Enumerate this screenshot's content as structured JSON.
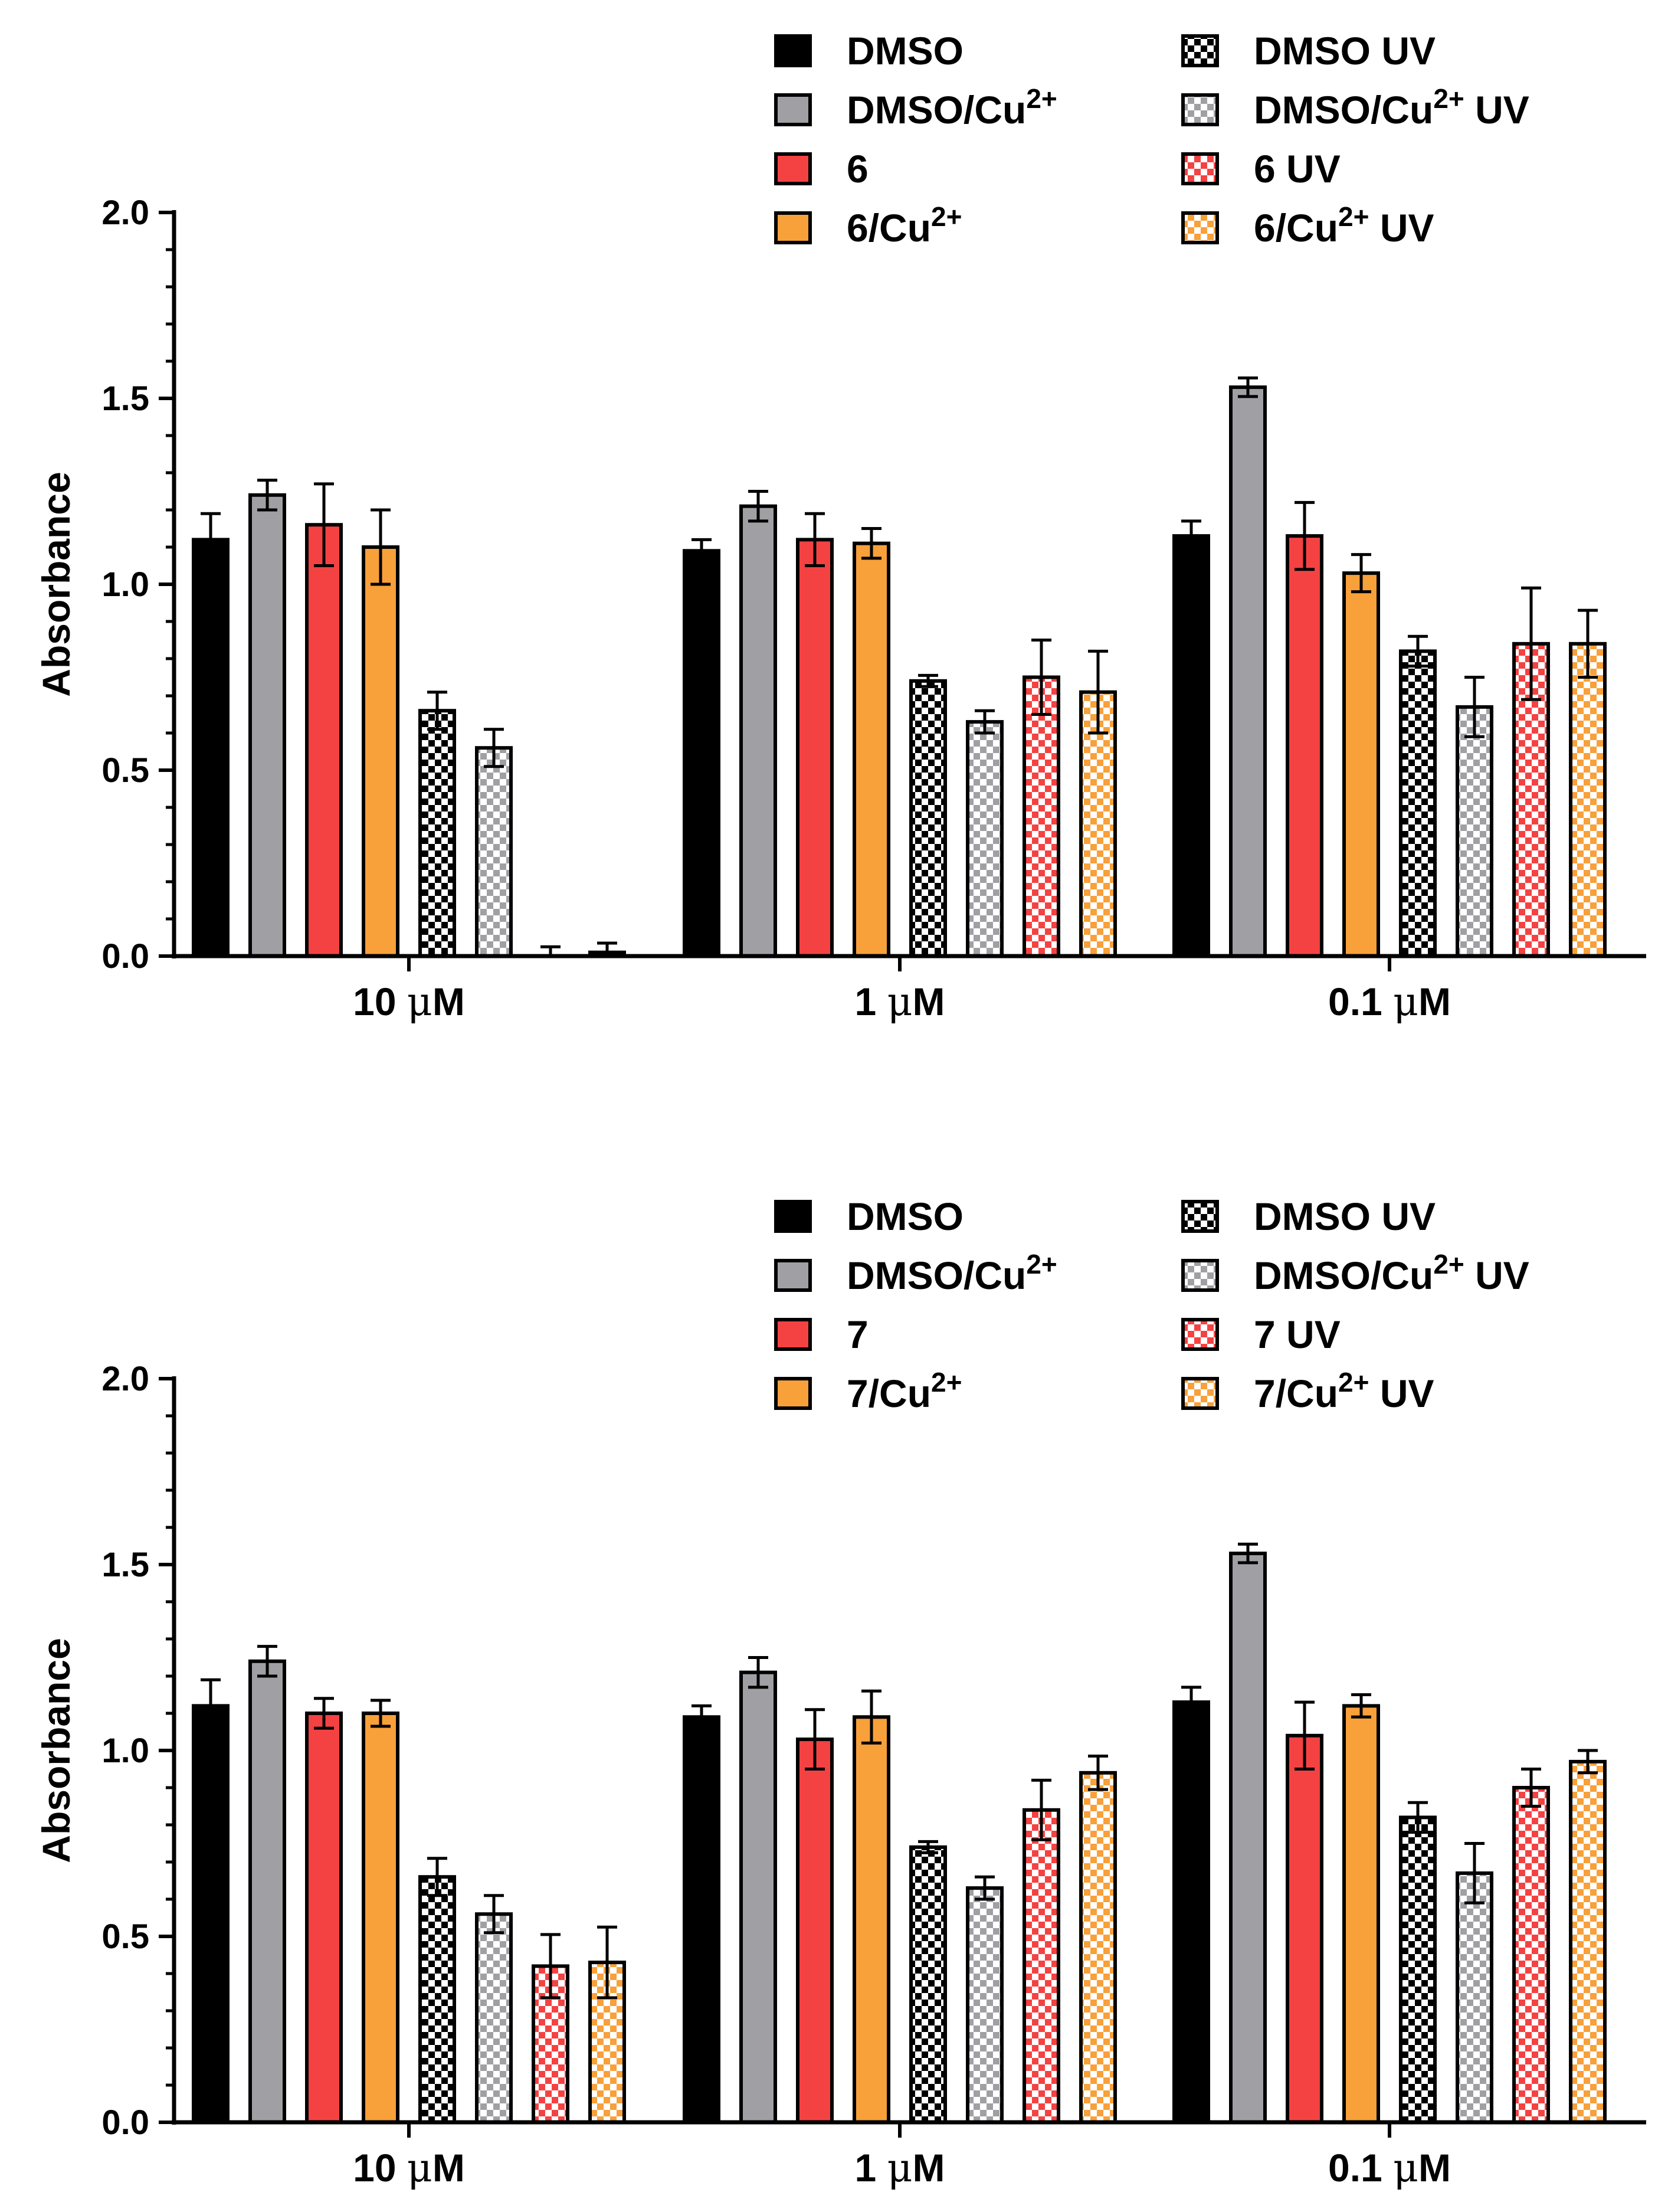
{
  "charts": [
    {
      "chart_data": {
        "type": "bar",
        "title": "",
        "xlabel": "",
        "ylabel": "Absorbance",
        "ylim": [
          0,
          2.0
        ],
        "yticks": [
          "0.0",
          "0.5",
          "1.0",
          "1.5",
          "2.0"
        ],
        "categories": [
          {
            "prefix": "10 ",
            "mu": "μ",
            "suffix": "M"
          },
          {
            "prefix": "1 ",
            "mu": "μ",
            "suffix": "M"
          },
          {
            "prefix": "0.1 ",
            "mu": "μ",
            "suffix": "M"
          }
        ],
        "legend_position": "top-right",
        "series": [
          {
            "name": "DMSO",
            "base": "DMSO",
            "sup": "",
            "tail": "",
            "color": "#000000",
            "pattern": "solid",
            "values": [
              1.12,
              1.09,
              1.13
            ],
            "errors": [
              0.07,
              0.03,
              0.04
            ]
          },
          {
            "name": "DMSO/Cu2+",
            "base": "DMSO/Cu",
            "sup": "2+",
            "tail": "",
            "color": "#a0a0a4",
            "pattern": "solid",
            "values": [
              1.24,
              1.21,
              1.53
            ],
            "errors": [
              0.04,
              0.04,
              0.025
            ]
          },
          {
            "name": "6",
            "base": "6",
            "sup": "",
            "tail": "",
            "color": "#f44242",
            "pattern": "solid",
            "values": [
              1.16,
              1.12,
              1.13
            ],
            "errors": [
              0.11,
              0.07,
              0.09
            ]
          },
          {
            "name": "6/Cu2+",
            "base": "6/Cu",
            "sup": "2+",
            "tail": "",
            "color": "#f8a03a",
            "pattern": "solid",
            "values": [
              1.1,
              1.11,
              1.03
            ],
            "errors": [
              0.1,
              0.04,
              0.05
            ]
          },
          {
            "name": "DMSO UV",
            "base": "DMSO UV",
            "sup": "",
            "tail": "",
            "color": "#000000",
            "pattern": "check",
            "values": [
              0.66,
              0.74,
              0.82
            ],
            "errors": [
              0.05,
              0.015,
              0.04
            ]
          },
          {
            "name": "DMSO/Cu2+ UV",
            "base": "DMSO/Cu",
            "sup": "2+",
            "tail": " UV",
            "color": "#a0a0a4",
            "pattern": "check",
            "values": [
              0.56,
              0.63,
              0.67
            ],
            "errors": [
              0.05,
              0.03,
              0.08
            ]
          },
          {
            "name": "6 UV",
            "base": "6 UV",
            "sup": "",
            "tail": "",
            "color": "#f44242",
            "pattern": "check",
            "values": [
              0.0,
              0.75,
              0.84
            ],
            "errors": [
              0.025,
              0.1,
              0.15
            ]
          },
          {
            "name": "6/Cu2+ UV",
            "base": "6/Cu",
            "sup": "2+",
            "tail": " UV",
            "color": "#f8a03a",
            "pattern": "check",
            "values": [
              0.01,
              0.71,
              0.84
            ],
            "errors": [
              0.025,
              0.11,
              0.09
            ]
          }
        ]
      }
    },
    {
      "chart_data": {
        "type": "bar",
        "title": "",
        "xlabel": "",
        "ylabel": "Absorbance",
        "ylim": [
          0,
          2.0
        ],
        "yticks": [
          "0.0",
          "0.5",
          "1.0",
          "1.5",
          "2.0"
        ],
        "categories": [
          {
            "prefix": "10 ",
            "mu": "μ",
            "suffix": "M"
          },
          {
            "prefix": "1 ",
            "mu": "μ",
            "suffix": "M"
          },
          {
            "prefix": "0.1 ",
            "mu": "μ",
            "suffix": "M"
          }
        ],
        "legend_position": "top-right",
        "series": [
          {
            "name": "DMSO",
            "base": "DMSO",
            "sup": "",
            "tail": "",
            "color": "#000000",
            "pattern": "solid",
            "values": [
              1.12,
              1.09,
              1.13
            ],
            "errors": [
              0.07,
              0.03,
              0.04
            ]
          },
          {
            "name": "DMSO/Cu2+",
            "base": "DMSO/Cu",
            "sup": "2+",
            "tail": "",
            "color": "#a0a0a4",
            "pattern": "solid",
            "values": [
              1.24,
              1.21,
              1.53
            ],
            "errors": [
              0.04,
              0.04,
              0.025
            ]
          },
          {
            "name": "7",
            "base": "7",
            "sup": "",
            "tail": "",
            "color": "#f44242",
            "pattern": "solid",
            "values": [
              1.1,
              1.03,
              1.04
            ],
            "errors": [
              0.04,
              0.08,
              0.09
            ]
          },
          {
            "name": "7/Cu2+",
            "base": "7/Cu",
            "sup": "2+",
            "tail": "",
            "color": "#f8a03a",
            "pattern": "solid",
            "values": [
              1.1,
              1.09,
              1.12
            ],
            "errors": [
              0.035,
              0.07,
              0.03
            ]
          },
          {
            "name": "DMSO UV",
            "base": "DMSO UV",
            "sup": "",
            "tail": "",
            "color": "#000000",
            "pattern": "check",
            "values": [
              0.66,
              0.74,
              0.82
            ],
            "errors": [
              0.05,
              0.015,
              0.04
            ]
          },
          {
            "name": "DMSO/Cu2+ UV",
            "base": "DMSO/Cu",
            "sup": "2+",
            "tail": " UV",
            "color": "#a0a0a4",
            "pattern": "check",
            "values": [
              0.56,
              0.63,
              0.67
            ],
            "errors": [
              0.05,
              0.03,
              0.08
            ]
          },
          {
            "name": "7 UV",
            "base": "7 UV",
            "sup": "",
            "tail": "",
            "color": "#f44242",
            "pattern": "check",
            "values": [
              0.42,
              0.84,
              0.9
            ],
            "errors": [
              0.085,
              0.08,
              0.05
            ]
          },
          {
            "name": "7/Cu2+ UV",
            "base": "7/Cu",
            "sup": "2+",
            "tail": " UV",
            "color": "#f8a03a",
            "pattern": "check",
            "values": [
              0.43,
              0.94,
              0.97
            ],
            "errors": [
              0.095,
              0.045,
              0.03
            ]
          }
        ]
      }
    }
  ]
}
